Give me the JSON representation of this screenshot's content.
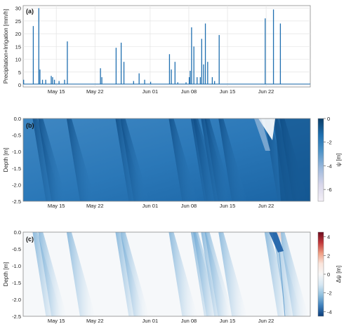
{
  "accent_color": "#1f6fb0",
  "chart_data": [
    {
      "id": "a",
      "type": "bar",
      "panel_label": "(a)",
      "ylabel": "Precipitation+Irrigation [mm/h]",
      "x_range": [
        "2023-05-09",
        "2023-06-30"
      ],
      "ylim": [
        0,
        31
      ],
      "yticks": [
        0,
        5,
        10,
        15,
        20,
        25,
        30
      ],
      "xticks": [
        {
          "date": "2023-05-15",
          "label": "May 15"
        },
        {
          "date": "2023-05-22",
          "label": "May 22"
        },
        {
          "date": "2023-06-01",
          "label": "Jun 01"
        },
        {
          "date": "2023-06-08",
          "label": "Jun 08"
        },
        {
          "date": "2023-06-15",
          "label": "Jun 15"
        },
        {
          "date": "2023-06-22",
          "label": "Jun 22"
        }
      ],
      "grid": true,
      "events": [
        {
          "t": "2023-05-09 02:00",
          "v": 2
        },
        {
          "t": "2023-05-10 20:00",
          "v": 23
        },
        {
          "t": "2023-05-11 20:00",
          "v": 30
        },
        {
          "t": "2023-05-12 01:00",
          "v": 6
        },
        {
          "t": "2023-05-12 12:00",
          "v": 2
        },
        {
          "t": "2023-05-13 02:00",
          "v": 2
        },
        {
          "t": "2023-05-14 02:00",
          "v": 3.5
        },
        {
          "t": "2023-05-14 08:00",
          "v": 3
        },
        {
          "t": "2023-05-14 16:00",
          "v": 2
        },
        {
          "t": "2023-05-15 12:00",
          "v": 1.5
        },
        {
          "t": "2023-05-16 12:00",
          "v": 2
        },
        {
          "t": "2023-05-17 00:00",
          "v": 17
        },
        {
          "t": "2023-05-23 00:00",
          "v": 6.5
        },
        {
          "t": "2023-05-23 06:00",
          "v": 3
        },
        {
          "t": "2023-05-25 20:00",
          "v": 14.5
        },
        {
          "t": "2023-05-26 18:00",
          "v": 16.5
        },
        {
          "t": "2023-05-27 06:00",
          "v": 9
        },
        {
          "t": "2023-05-29 00:00",
          "v": 1.5
        },
        {
          "t": "2023-05-30 00:00",
          "v": 4.5
        },
        {
          "t": "2023-05-31 00:00",
          "v": 2
        },
        {
          "t": "2023-06-01 02:00",
          "v": 1.2
        },
        {
          "t": "2023-06-04 12:00",
          "v": 12
        },
        {
          "t": "2023-06-04 20:00",
          "v": 6
        },
        {
          "t": "2023-06-05 12:00",
          "v": 9
        },
        {
          "t": "2023-06-06 00:00",
          "v": 1
        },
        {
          "t": "2023-06-07 12:00",
          "v": 1
        },
        {
          "t": "2023-06-08 02:00",
          "v": 3
        },
        {
          "t": "2023-06-08 06:00",
          "v": 5.5
        },
        {
          "t": "2023-06-08 12:00",
          "v": 22.5
        },
        {
          "t": "2023-06-08 22:00",
          "v": 15
        },
        {
          "t": "2023-06-09 12:00",
          "v": 3
        },
        {
          "t": "2023-06-10 02:00",
          "v": 3
        },
        {
          "t": "2023-06-10 08:00",
          "v": 18
        },
        {
          "t": "2023-06-10 16:00",
          "v": 8
        },
        {
          "t": "2023-06-11 00:00",
          "v": 24
        },
        {
          "t": "2023-06-11 10:00",
          "v": 9
        },
        {
          "t": "2023-06-12 06:00",
          "v": 3
        },
        {
          "t": "2023-06-12 16:00",
          "v": 1.5
        },
        {
          "t": "2023-06-13 12:00",
          "v": 19.5
        },
        {
          "t": "2023-06-21 20:00",
          "v": 26
        },
        {
          "t": "2023-06-23 08:00",
          "v": 29.5
        },
        {
          "t": "2023-06-24 14:00",
          "v": 24
        }
      ]
    },
    {
      "id": "b",
      "type": "heatmap",
      "panel_label": "(b)",
      "ylabel": "Depth [m]",
      "ylim": [
        -2.5,
        0.0
      ],
      "yticks": [
        0.0,
        -0.5,
        -1.0,
        -1.5,
        -2.0,
        -2.5
      ],
      "xticks": [
        "May 15",
        "May 22",
        "Jun 01",
        "Jun 08",
        "Jun 15",
        "Jun 22"
      ],
      "colorbar": {
        "label": "ψ [m]",
        "range": [
          -7,
          0
        ],
        "ticks": [
          0,
          -2,
          -4,
          -6
        ],
        "colormap": [
          "#0a3d66",
          "#1d6fb0",
          "#4f94c8",
          "#9db9dc",
          "#d8d6ea",
          "#f4f0f7"
        ]
      }
    },
    {
      "id": "c",
      "type": "heatmap",
      "panel_label": "(c)",
      "ylabel": "Depth [m]",
      "ylim": [
        -2.5,
        0.0
      ],
      "yticks": [
        0.0,
        -0.5,
        -1.0,
        -1.5,
        -2.0,
        -2.5
      ],
      "xticks": [
        "May 15",
        "May 22",
        "Jun 01",
        "Jun 08",
        "Jun 15",
        "Jun 22"
      ],
      "colorbar": {
        "label": "Δψ [m]",
        "range": [
          -4.5,
          4.5
        ],
        "ticks": [
          4,
          2,
          0,
          -2,
          -4
        ],
        "colormap": [
          "#6b0a1e",
          "#c2383a",
          "#ef9d82",
          "#fbe5dc",
          "#f7f7f7",
          "#d6e7f3",
          "#8fbfdd",
          "#3d7fbc",
          "#0b3c78"
        ]
      }
    }
  ]
}
